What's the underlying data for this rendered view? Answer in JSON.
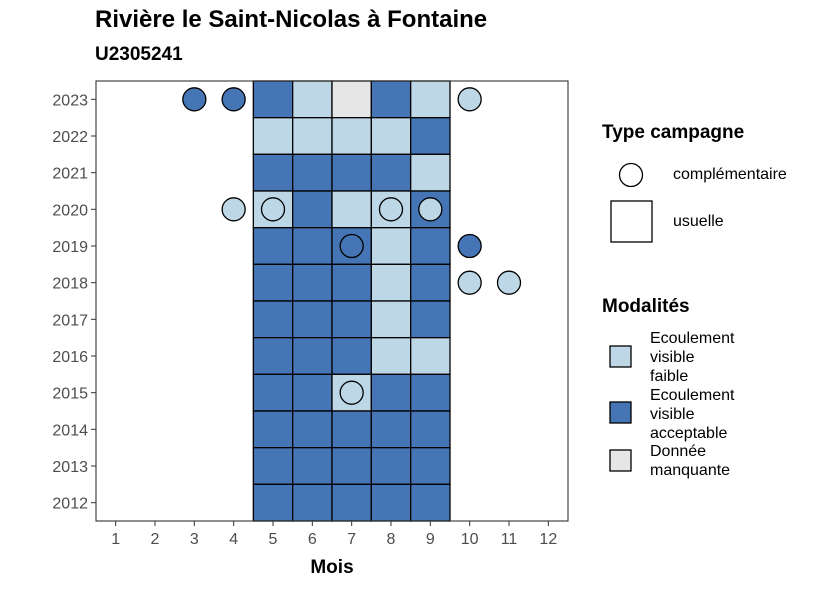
{
  "title": "Rivière le Saint-Nicolas à Fontaine",
  "subtitle": "U2305241",
  "colors": {
    "faible": "#BDD7E7",
    "acceptable": "#4575B4",
    "manquante": "#E6E6E6"
  },
  "legend": {
    "type_title": "Type campagne",
    "type_items": [
      {
        "key": "complementaire",
        "label": "complémentaire",
        "icon": "circle-icon"
      },
      {
        "key": "usuelle",
        "label": "usuelle",
        "icon": "square-icon"
      }
    ],
    "modalites_title": "Modalités",
    "modalites_items": [
      {
        "key": "faible",
        "lines": [
          "Ecoulement",
          "visible",
          "faible"
        ]
      },
      {
        "key": "acceptable",
        "lines": [
          "Ecoulement",
          "visible",
          "acceptable"
        ]
      },
      {
        "key": "manquante",
        "lines": [
          "Donnée",
          "manquante"
        ]
      }
    ]
  },
  "chart_data": {
    "type": "heatmap",
    "title": "Rivière le Saint-Nicolas à Fontaine",
    "subtitle": "U2305241",
    "xlabel": "Mois",
    "ylabel": "",
    "x": [
      1,
      2,
      3,
      4,
      5,
      6,
      7,
      8,
      9,
      10,
      11,
      12
    ],
    "y": [
      2012,
      2013,
      2014,
      2015,
      2016,
      2017,
      2018,
      2019,
      2020,
      2021,
      2022,
      2023
    ],
    "xlim": [
      0.5,
      12.5
    ],
    "ylim": [
      2011.5,
      2023.5
    ],
    "grid": false,
    "usuelle": [
      {
        "year": 2023,
        "values": {
          "5": "acceptable",
          "6": "faible",
          "7": "manquante",
          "8": "acceptable",
          "9": "faible"
        }
      },
      {
        "year": 2022,
        "values": {
          "5": "faible",
          "6": "faible",
          "7": "faible",
          "8": "faible",
          "9": "acceptable"
        }
      },
      {
        "year": 2021,
        "values": {
          "5": "acceptable",
          "6": "acceptable",
          "7": "acceptable",
          "8": "acceptable",
          "9": "faible"
        }
      },
      {
        "year": 2020,
        "values": {
          "5": "faible",
          "6": "acceptable",
          "7": "faible",
          "8": "faible",
          "9": "acceptable"
        }
      },
      {
        "year": 2019,
        "values": {
          "5": "acceptable",
          "6": "acceptable",
          "7": "acceptable",
          "8": "faible",
          "9": "acceptable"
        }
      },
      {
        "year": 2018,
        "values": {
          "5": "acceptable",
          "6": "acceptable",
          "7": "acceptable",
          "8": "faible",
          "9": "acceptable"
        }
      },
      {
        "year": 2017,
        "values": {
          "5": "acceptable",
          "6": "acceptable",
          "7": "acceptable",
          "8": "faible",
          "9": "acceptable"
        }
      },
      {
        "year": 2016,
        "values": {
          "5": "acceptable",
          "6": "acceptable",
          "7": "acceptable",
          "8": "faible",
          "9": "faible"
        }
      },
      {
        "year": 2015,
        "values": {
          "5": "acceptable",
          "6": "acceptable",
          "7": "faible",
          "8": "acceptable",
          "9": "acceptable"
        }
      },
      {
        "year": 2014,
        "values": {
          "5": "acceptable",
          "6": "acceptable",
          "7": "acceptable",
          "8": "acceptable",
          "9": "acceptable"
        }
      },
      {
        "year": 2013,
        "values": {
          "5": "acceptable",
          "6": "acceptable",
          "7": "acceptable",
          "8": "acceptable",
          "9": "acceptable"
        }
      },
      {
        "year": 2012,
        "values": {
          "5": "acceptable",
          "6": "acceptable",
          "7": "acceptable",
          "8": "acceptable",
          "9": "acceptable"
        }
      }
    ],
    "complementaire": [
      {
        "year": 2023,
        "month": 3,
        "value": "acceptable"
      },
      {
        "year": 2023,
        "month": 4,
        "value": "acceptable"
      },
      {
        "year": 2023,
        "month": 10,
        "value": "faible"
      },
      {
        "year": 2020,
        "month": 4,
        "value": "faible"
      },
      {
        "year": 2020,
        "month": 5,
        "value": "faible"
      },
      {
        "year": 2020,
        "month": 8,
        "value": "faible"
      },
      {
        "year": 2020,
        "month": 9,
        "value": "faible"
      },
      {
        "year": 2019,
        "month": 7,
        "value": "acceptable"
      },
      {
        "year": 2019,
        "month": 10,
        "value": "acceptable"
      },
      {
        "year": 2018,
        "month": 10,
        "value": "faible"
      },
      {
        "year": 2018,
        "month": 11,
        "value": "faible"
      },
      {
        "year": 2015,
        "month": 7,
        "value": "faible"
      }
    ]
  }
}
